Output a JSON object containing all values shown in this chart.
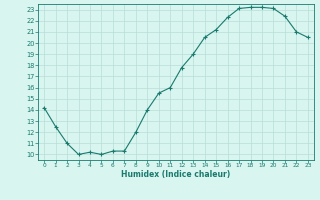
{
  "x": [
    0,
    1,
    2,
    3,
    4,
    5,
    6,
    7,
    8,
    9,
    10,
    11,
    12,
    13,
    14,
    15,
    16,
    17,
    18,
    19,
    20,
    21,
    22,
    23
  ],
  "y": [
    14.2,
    12.5,
    11.0,
    10.0,
    10.2,
    10.0,
    10.3,
    10.3,
    12.0,
    14.0,
    15.5,
    16.0,
    17.8,
    19.0,
    20.5,
    21.2,
    22.3,
    23.1,
    23.2,
    23.2,
    23.1,
    22.4,
    21.0,
    20.5
  ],
  "xlabel": "Humidex (Indice chaleur)",
  "ylabel": "",
  "xlim": [
    -0.5,
    23.5
  ],
  "ylim": [
    9.5,
    23.5
  ],
  "yticks": [
    10,
    11,
    12,
    13,
    14,
    15,
    16,
    17,
    18,
    19,
    20,
    21,
    22,
    23
  ],
  "xticks": [
    0,
    1,
    2,
    3,
    4,
    5,
    6,
    7,
    8,
    9,
    10,
    11,
    12,
    13,
    14,
    15,
    16,
    17,
    18,
    19,
    20,
    21,
    22,
    23
  ],
  "line_color": "#1a7a6e",
  "bg_color": "#d8f5f0",
  "grid_color": "#b8ddd8",
  "marker": "+"
}
